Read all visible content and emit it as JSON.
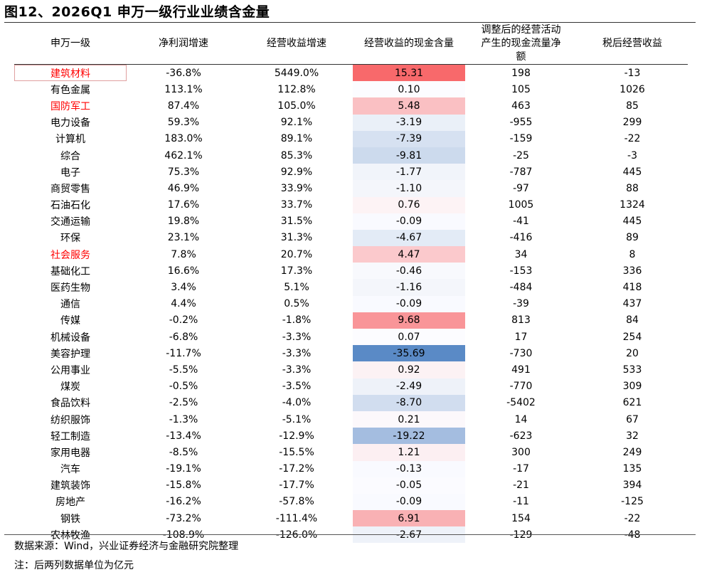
{
  "title": "图12、2026Q1 申万一级行业业绩含金量",
  "headers": [
    "申万一级",
    "净利润增速",
    "经营收益增速",
    "经营收益的现金含量",
    "调整后的经营活动产生的现金流量净额",
    "税后经营收益"
  ],
  "rows": [
    {
      "name": "建筑材料",
      "profit_growth": "-36.8%",
      "op_growth": "5449.0%",
      "cash_content": "15.31",
      "cash_bg": "#f8696b",
      "adj_cf": "198",
      "op_income": "-13",
      "highlight": true
    },
    {
      "name": "有色金属",
      "profit_growth": "113.1%",
      "op_growth": "112.8%",
      "cash_content": "0.10",
      "cash_bg": "#fcfcff",
      "adj_cf": "105",
      "op_income": "1026",
      "highlight": false
    },
    {
      "name": "国防军工",
      "profit_growth": "87.4%",
      "op_growth": "105.0%",
      "cash_content": "5.48",
      "cash_bg": "#fac0c3",
      "adj_cf": "463",
      "op_income": "85",
      "highlight": true
    },
    {
      "name": "电力设备",
      "profit_growth": "59.3%",
      "op_growth": "92.1%",
      "cash_content": "-3.19",
      "cash_bg": "#eaf0f8",
      "adj_cf": "-955",
      "op_income": "299",
      "highlight": false
    },
    {
      "name": "计算机",
      "profit_growth": "183.0%",
      "op_growth": "89.1%",
      "cash_content": "-7.39",
      "cash_bg": "#d6e1f1",
      "adj_cf": "-159",
      "op_income": "-22",
      "highlight": false
    },
    {
      "name": "综合",
      "profit_growth": "462.1%",
      "op_growth": "85.3%",
      "cash_content": "-9.81",
      "cash_bg": "#ccdaed",
      "adj_cf": "-25",
      "op_income": "-3",
      "highlight": false
    },
    {
      "name": "电子",
      "profit_growth": "75.3%",
      "op_growth": "92.9%",
      "cash_content": "-1.77",
      "cash_bg": "#f1f4fa",
      "adj_cf": "-787",
      "op_income": "445",
      "highlight": false
    },
    {
      "name": "商贸零售",
      "profit_growth": "46.9%",
      "op_growth": "33.9%",
      "cash_content": "-1.10",
      "cash_bg": "#f4f6fb",
      "adj_cf": "-97",
      "op_income": "88",
      "highlight": false
    },
    {
      "name": "石油石化",
      "profit_growth": "17.6%",
      "op_growth": "33.7%",
      "cash_content": "0.76",
      "cash_bg": "#fdf3f5",
      "adj_cf": "1005",
      "op_income": "1324",
      "highlight": false
    },
    {
      "name": "交通运输",
      "profit_growth": "19.8%",
      "op_growth": "31.5%",
      "cash_content": "-0.09",
      "cash_bg": "#f9faff",
      "adj_cf": "-41",
      "op_income": "445",
      "highlight": false
    },
    {
      "name": "环保",
      "profit_growth": "23.1%",
      "op_growth": "31.3%",
      "cash_content": "-4.67",
      "cash_bg": "#e3ebf6",
      "adj_cf": "-416",
      "op_income": "89",
      "highlight": false
    },
    {
      "name": "社会服务",
      "profit_growth": "7.8%",
      "op_growth": "20.7%",
      "cash_content": "4.47",
      "cash_bg": "#fbc9cc",
      "adj_cf": "34",
      "op_income": "8",
      "highlight": true
    },
    {
      "name": "基础化工",
      "profit_growth": "16.6%",
      "op_growth": "17.3%",
      "cash_content": "-0.46",
      "cash_bg": "#f8f9fd",
      "adj_cf": "-153",
      "op_income": "336",
      "highlight": false
    },
    {
      "name": "医药生物",
      "profit_growth": "3.4%",
      "op_growth": "5.1%",
      "cash_content": "-1.16",
      "cash_bg": "#f4f6fb",
      "adj_cf": "-484",
      "op_income": "418",
      "highlight": false
    },
    {
      "name": "通信",
      "profit_growth": "4.4%",
      "op_growth": "0.5%",
      "cash_content": "-0.09",
      "cash_bg": "#f9faff",
      "adj_cf": "-39",
      "op_income": "437",
      "highlight": false
    },
    {
      "name": "传媒",
      "profit_growth": "-0.2%",
      "op_growth": "-1.8%",
      "cash_content": "9.68",
      "cash_bg": "#f99598",
      "adj_cf": "813",
      "op_income": "84",
      "highlight": false
    },
    {
      "name": "机械设备",
      "profit_growth": "-6.8%",
      "op_growth": "-3.3%",
      "cash_content": "0.07",
      "cash_bg": "#fcfcff",
      "adj_cf": "17",
      "op_income": "254",
      "highlight": false
    },
    {
      "name": "美容护理",
      "profit_growth": "-11.7%",
      "op_growth": "-3.3%",
      "cash_content": "-35.69",
      "cash_bg": "#5a8ac6",
      "adj_cf": "-730",
      "op_income": "20",
      "highlight": false
    },
    {
      "name": "公用事业",
      "profit_growth": "-5.5%",
      "op_growth": "-3.3%",
      "cash_content": "0.92",
      "cash_bg": "#fcf2f4",
      "adj_cf": "491",
      "op_income": "533",
      "highlight": false
    },
    {
      "name": "煤炭",
      "profit_growth": "-0.5%",
      "op_growth": "-3.5%",
      "cash_content": "-2.49",
      "cash_bg": "#eef2f9",
      "adj_cf": "-770",
      "op_income": "309",
      "highlight": false
    },
    {
      "name": "食品饮料",
      "profit_growth": "-2.5%",
      "op_growth": "-4.0%",
      "cash_content": "-8.70",
      "cash_bg": "#d1ddef",
      "adj_cf": "-5402",
      "op_income": "621",
      "highlight": false
    },
    {
      "name": "纺织服饰",
      "profit_growth": "-1.3%",
      "op_growth": "-5.1%",
      "cash_content": "0.21",
      "cash_bg": "#fcf8fb",
      "adj_cf": "14",
      "op_income": "67",
      "highlight": false
    },
    {
      "name": "轻工制造",
      "profit_growth": "-13.4%",
      "op_growth": "-12.9%",
      "cash_content": "-19.22",
      "cash_bg": "#a4bde0",
      "adj_cf": "-623",
      "op_income": "32",
      "highlight": false
    },
    {
      "name": "家用电器",
      "profit_growth": "-8.5%",
      "op_growth": "-15.5%",
      "cash_content": "1.21",
      "cash_bg": "#fceff2",
      "adj_cf": "300",
      "op_income": "249",
      "highlight": false
    },
    {
      "name": "汽车",
      "profit_growth": "-19.1%",
      "op_growth": "-17.2%",
      "cash_content": "-0.13",
      "cash_bg": "#f9faff",
      "adj_cf": "-17",
      "op_income": "135",
      "highlight": false
    },
    {
      "name": "建筑装饰",
      "profit_growth": "-15.8%",
      "op_growth": "-17.7%",
      "cash_content": "-0.05",
      "cash_bg": "#fbfbff",
      "adj_cf": "-21",
      "op_income": "394",
      "highlight": false
    },
    {
      "name": "房地产",
      "profit_growth": "-16.2%",
      "op_growth": "-57.8%",
      "cash_content": "-0.09",
      "cash_bg": "#f9faff",
      "adj_cf": "-11",
      "op_income": "-125",
      "highlight": false
    },
    {
      "name": "钢铁",
      "profit_growth": "-73.2%",
      "op_growth": "-111.4%",
      "cash_content": "6.91",
      "cash_bg": "#f9b1b4",
      "adj_cf": "154",
      "op_income": "-22",
      "highlight": false
    },
    {
      "name": "农林牧渔",
      "profit_growth": "-108.9%",
      "op_growth": "-126.0%",
      "cash_content": "-2.67",
      "cash_bg": "#eef2f9",
      "adj_cf": "-129",
      "op_income": "-48",
      "highlight": false
    }
  ],
  "colors": {
    "highlight_text": "#ff0000",
    "rule": "#333333"
  },
  "source": "数据来源：Wind，兴业证券经济与金融研究院整理",
  "note": "注：后两列数据单位为亿元"
}
